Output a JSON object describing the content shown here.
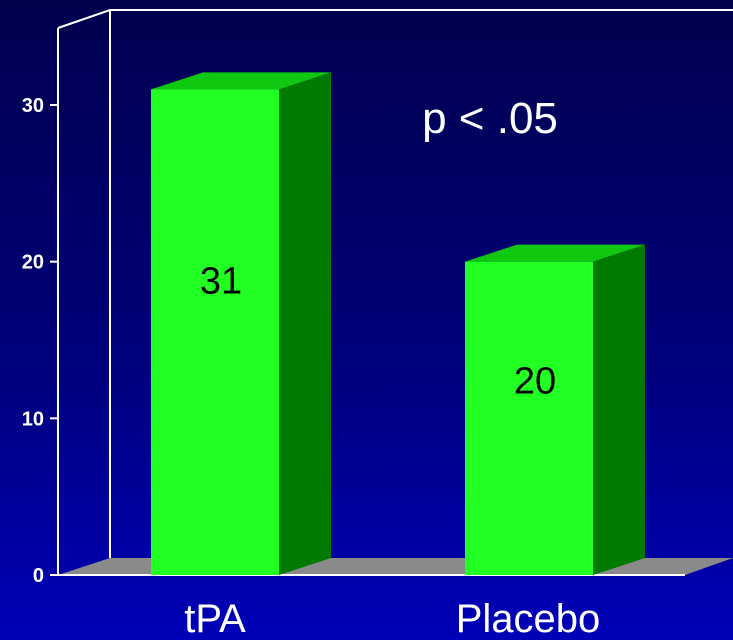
{
  "chart_data": {
    "type": "bar",
    "categories": [
      "tPA",
      "Placebo"
    ],
    "values": [
      31,
      20
    ],
    "data_labels": [
      "31",
      "20"
    ],
    "y_ticks": [
      "0",
      "10",
      "20",
      "30"
    ],
    "ylim": [
      0,
      30
    ],
    "annotation": "p < .05",
    "grid": false,
    "colors": {
      "bar_front": "#22ff22",
      "bar_side": "#007a00",
      "bar_top": "#11c811",
      "floor": "#8a8a8a",
      "axis": "#ffffff"
    }
  }
}
